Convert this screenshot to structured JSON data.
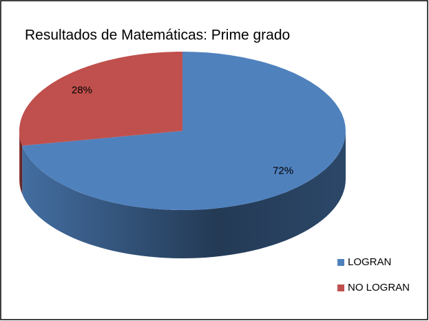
{
  "chart_data": {
    "type": "pie",
    "title": "Resultados de Matemáticas: Prime grado",
    "categories": [
      "LOGRAN",
      "NO LOGRAN"
    ],
    "values": [
      72,
      28
    ],
    "value_labels": [
      "72%",
      "28%"
    ],
    "colors": [
      "#4f81bd",
      "#c0504d"
    ],
    "legend": "bottom-right"
  }
}
